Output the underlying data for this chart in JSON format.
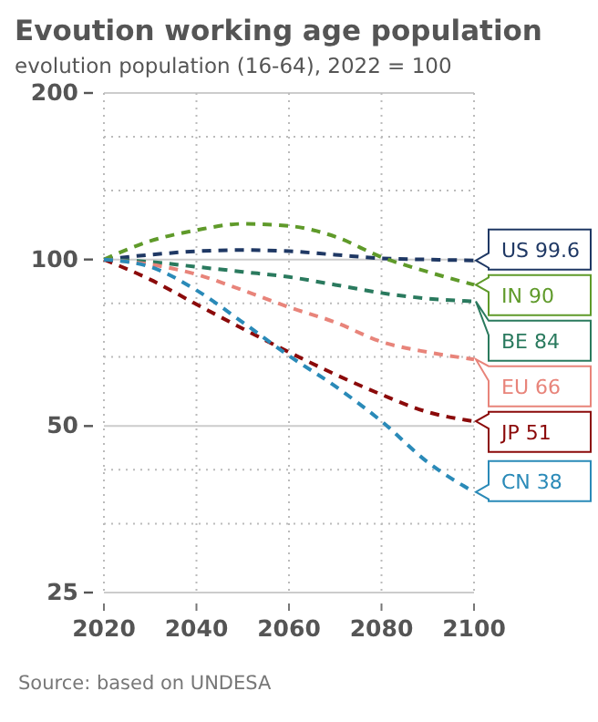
{
  "chart_data": {
    "type": "line",
    "title": "Evoution working age population",
    "subtitle": "evolution population (16-64), 2022 = 100",
    "x": [
      2020,
      2030,
      2040,
      2050,
      2060,
      2070,
      2080,
      2090,
      2100
    ],
    "series": [
      {
        "name": "US",
        "color": "#1f3864",
        "values": [
          100,
          102,
          103.5,
          104,
          103.5,
          102,
          100.5,
          100,
          99.6
        ],
        "value_labels": [
          null,
          null,
          null,
          null,
          null,
          null,
          null,
          null,
          "99.6"
        ]
      },
      {
        "name": "IN",
        "color": "#5f9a2a",
        "values": [
          100,
          108,
          113,
          116,
          115,
          110,
          101,
          95,
          90
        ],
        "value_labels": [
          null,
          null,
          null,
          null,
          null,
          null,
          null,
          null,
          "90"
        ]
      },
      {
        "name": "BE",
        "color": "#2a7a5e",
        "values": [
          100,
          99,
          97,
          95,
          93,
          90,
          87,
          85,
          84
        ],
        "value_labels": [
          null,
          null,
          null,
          null,
          null,
          null,
          null,
          null,
          "84"
        ]
      },
      {
        "name": "EU",
        "color": "#e8847a",
        "values": [
          100,
          98,
          94,
          88,
          82,
          77,
          71,
          68,
          66
        ],
        "value_labels": [
          null,
          null,
          null,
          null,
          null,
          null,
          null,
          null,
          "66"
        ]
      },
      {
        "name": "JP",
        "color": "#8b0a0a",
        "values": [
          100,
          92,
          83,
          75,
          68,
          62,
          57,
          53,
          51
        ],
        "value_labels": [
          null,
          null,
          null,
          null,
          null,
          null,
          null,
          null,
          "51"
        ]
      },
      {
        "name": "CN",
        "color": "#2a8ab8",
        "values": [
          100,
          97,
          88,
          77,
          67,
          59,
          51,
          43,
          38
        ],
        "value_labels": [
          null,
          null,
          null,
          null,
          null,
          null,
          null,
          null,
          "38"
        ]
      }
    ],
    "log": "y",
    "line_style": "dashed",
    "marker": "none",
    "grid": true,
    "xlim": [
      2020,
      2100
    ],
    "xticks": [
      2020,
      2040,
      2060,
      2080,
      2100
    ],
    "ylim": [
      25,
      200
    ],
    "yticks": [
      25,
      {
        "value": 33.3,
        "label": null
      },
      {
        "value": 41.7,
        "label": null
      },
      50,
      {
        "value": 66.7,
        "label": null
      },
      {
        "value": 83.3,
        "label": null
      },
      100,
      {
        "value": 133.3,
        "label": null
      },
      {
        "value": 166.7,
        "label": null
      },
      200
    ],
    "annotations": [
      "Source: based on UNDESA"
    ]
  }
}
